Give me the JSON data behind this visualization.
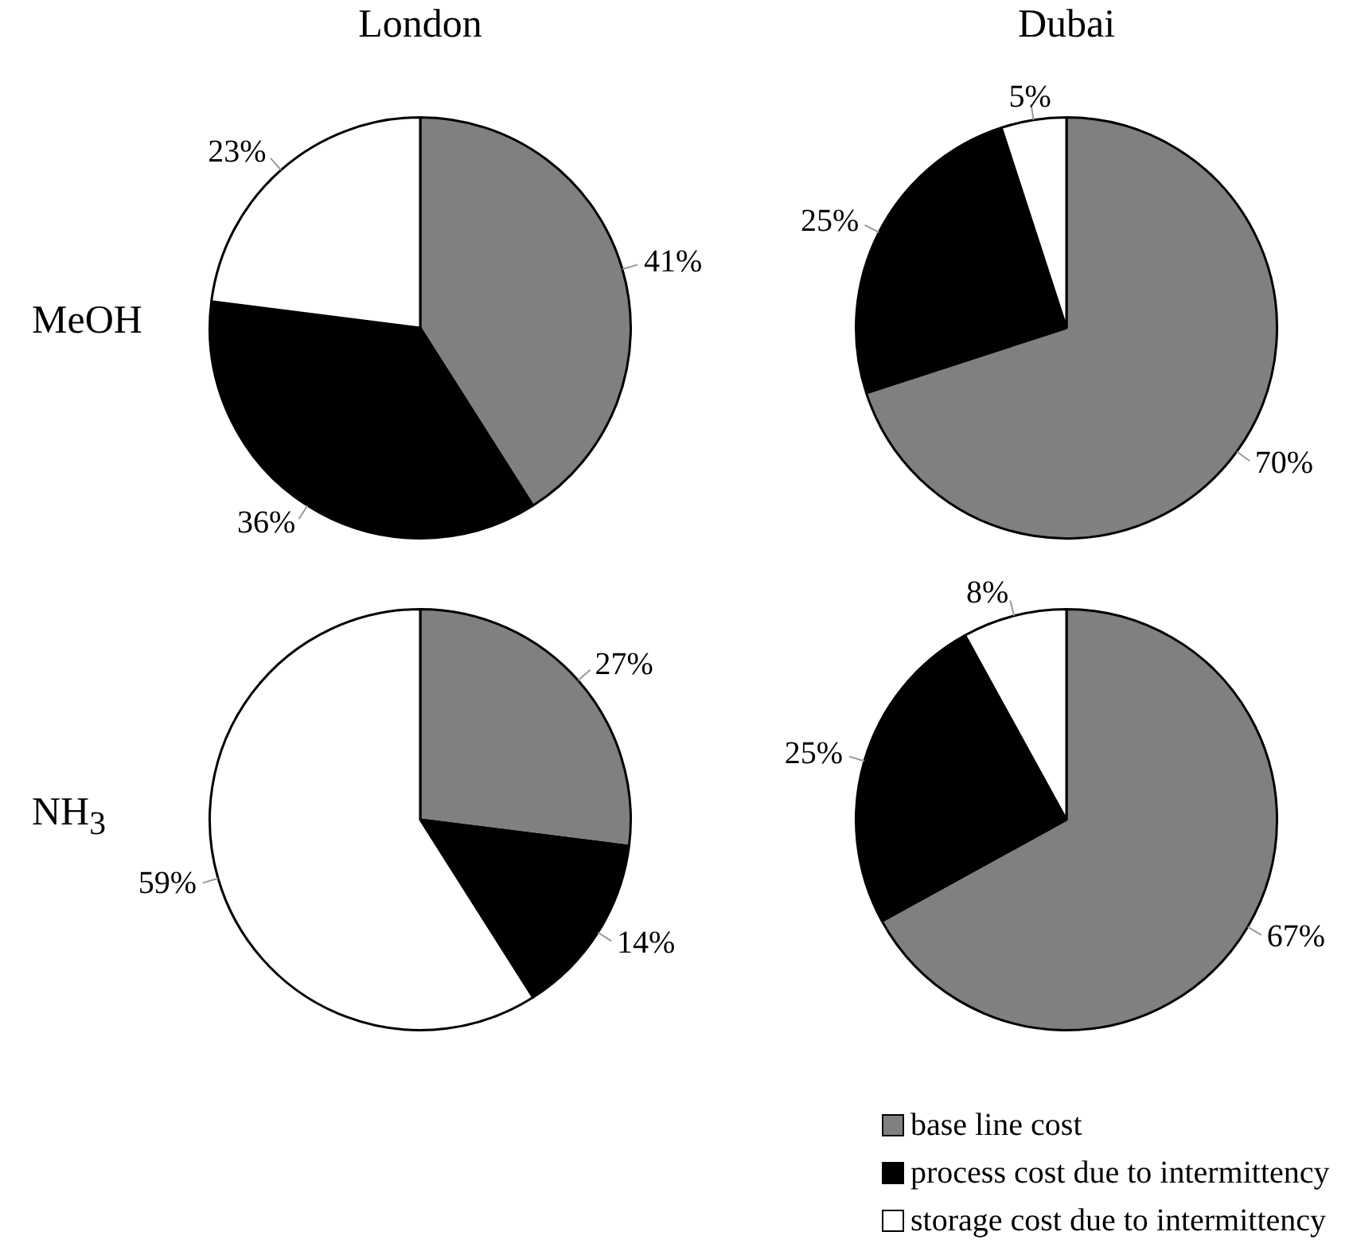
{
  "chart_data": [
    {
      "type": "pie",
      "title": "London",
      "ylabel": "MeOH",
      "categories": [
        null,
        null,
        null
      ],
      "values": [
        41,
        36,
        23
      ],
      "colors": [
        "#808080",
        "#000000",
        "#ffffff"
      ],
      "value_labels": [
        "41%",
        "36%",
        "23%"
      ]
    },
    {
      "type": "pie",
      "title": "Dubai",
      "categories": [
        null,
        null,
        null
      ],
      "values": [
        70,
        25,
        5
      ],
      "colors": [
        "#808080",
        "#000000",
        "#ffffff"
      ],
      "value_labels": [
        "70%",
        "25%",
        "5%"
      ]
    },
    {
      "type": "pie",
      "ylabel": "NH$_{3}$",
      "categories": [
        null,
        null,
        null
      ],
      "values": [
        27,
        14,
        59
      ],
      "colors": [
        "#808080",
        "#000000",
        "#ffffff"
      ],
      "value_labels": [
        "27%",
        "14%",
        "59%"
      ]
    },
    {
      "type": "pie",
      "categories": [
        "base line cost",
        "process cost due to intermittency",
        "storage cost due to intermittency"
      ],
      "values": [
        67,
        25,
        8
      ],
      "colors": [
        "#808080",
        "#000000",
        "#ffffff"
      ],
      "value_labels": [
        "67%",
        "25%",
        "8%"
      ],
      "legend": "bottom right"
    }
  ]
}
